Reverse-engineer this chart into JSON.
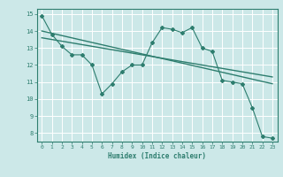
{
  "title": "",
  "xlabel": "Humidex (Indice chaleur)",
  "ylabel": "",
  "bg_color": "#cce8e8",
  "grid_color": "#ffffff",
  "line_color": "#2d7d6e",
  "xlim": [
    -0.5,
    23.5
  ],
  "ylim": [
    7.5,
    15.3
  ],
  "xticks": [
    0,
    1,
    2,
    3,
    4,
    5,
    6,
    7,
    8,
    9,
    10,
    11,
    12,
    13,
    14,
    15,
    16,
    17,
    18,
    19,
    20,
    21,
    22,
    23
  ],
  "yticks": [
    8,
    9,
    10,
    11,
    12,
    13,
    14,
    15
  ],
  "series1": [
    14.9,
    13.8,
    13.1,
    12.6,
    12.6,
    12.0,
    10.3,
    10.9,
    11.6,
    12.0,
    12.0,
    13.3,
    14.2,
    14.1,
    13.9,
    14.2,
    13.0,
    12.8,
    11.1,
    11.0,
    10.9,
    9.5,
    7.8,
    7.7
  ],
  "trend1_x": [
    0,
    23
  ],
  "trend1_y": [
    14.0,
    10.9
  ],
  "trend2_x": [
    0,
    23
  ],
  "trend2_y": [
    13.6,
    11.3
  ]
}
